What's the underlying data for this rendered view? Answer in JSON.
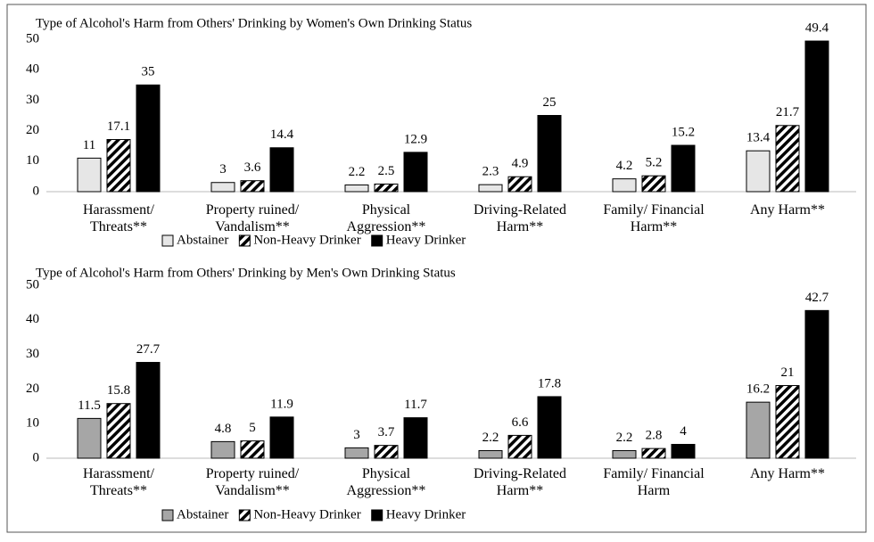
{
  "chart_data": [
    {
      "type": "bar",
      "title": "Type of Alcohol's Harm from Others' Drinking by Women's Own Drinking Status",
      "categories": [
        "Harassment/\nThreats**",
        "Property ruined/\nVandalism**",
        "Physical\nAggression**",
        "Driving-Related\nHarm**",
        "Family/ Financial\nHarm**",
        "Any Harm**"
      ],
      "series": [
        {
          "name": "Abstainer",
          "color": "#e6e6e6",
          "values": [
            11,
            3,
            2.2,
            2.3,
            4.2,
            13.4
          ]
        },
        {
          "name": "Non-Heavy Drinker",
          "color": "#ffffff",
          "pattern": "hatch",
          "values": [
            17.1,
            3.6,
            2.5,
            4.9,
            5.2,
            21.7
          ]
        },
        {
          "name": "Heavy Drinker",
          "color": "#000000",
          "values": [
            35,
            14.4,
            12.9,
            25,
            15.2,
            49.4
          ]
        }
      ],
      "ylim": [
        0,
        50
      ],
      "yticks": [
        0,
        10,
        20,
        30,
        40,
        50
      ],
      "grid": false,
      "legend": "bottom"
    },
    {
      "type": "bar",
      "title": "Type of Alcohol's Harm from Others' Drinking by Men's Own Drinking  Status",
      "categories": [
        "Harassment/\nThreats**",
        "Property ruined/\nVandalism**",
        "Physical\nAggression**",
        "Driving-Related\nHarm**",
        "Family/ Financial\nHarm",
        "Any Harm**"
      ],
      "series": [
        {
          "name": "Abstainer",
          "color": "#a6a6a6",
          "values": [
            11.5,
            4.8,
            3,
            2.2,
            2.2,
            16.2
          ]
        },
        {
          "name": "Non-Heavy Drinker",
          "color": "#ffffff",
          "pattern": "hatch",
          "values": [
            15.8,
            5,
            3.7,
            6.6,
            2.8,
            21
          ]
        },
        {
          "name": "Heavy Drinker",
          "color": "#000000",
          "values": [
            27.7,
            11.9,
            11.7,
            17.8,
            4,
            42.7
          ]
        }
      ],
      "ylim": [
        0,
        50
      ],
      "yticks": [
        0,
        10,
        20,
        30,
        40,
        50
      ],
      "grid": false,
      "legend": "bottom"
    }
  ]
}
